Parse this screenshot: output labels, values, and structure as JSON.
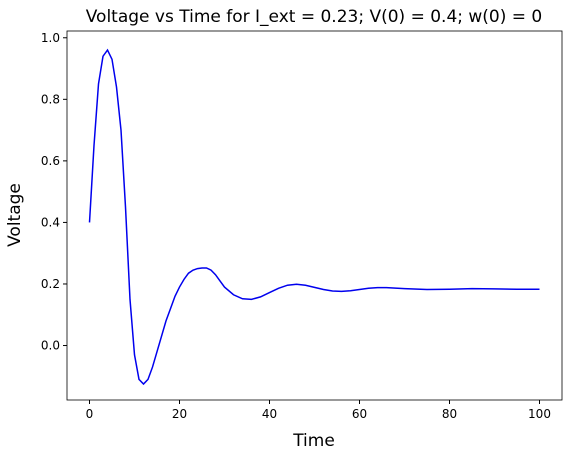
{
  "chart_data": {
    "type": "line",
    "title": "Voltage vs Time for I_ext = 0.23; V(0) = 0.4; w(0) = 0",
    "xlabel": "Time",
    "ylabel": "Voltage",
    "x": [
      0,
      1,
      2,
      3,
      4,
      5,
      6,
      7,
      8,
      9,
      10,
      11,
      12,
      13,
      14,
      15,
      16,
      17,
      18,
      19,
      20,
      21,
      22,
      23,
      24,
      25,
      26,
      27,
      28,
      29,
      30,
      32,
      34,
      36,
      38,
      40,
      42,
      44,
      46,
      48,
      50,
      52,
      54,
      56,
      58,
      60,
      62,
      64,
      66,
      70,
      75,
      80,
      85,
      90,
      95,
      100
    ],
    "series": [
      {
        "name": "Voltage",
        "color": "#0000ee",
        "values": [
          0.4,
          0.65,
          0.85,
          0.94,
          0.96,
          0.93,
          0.84,
          0.7,
          0.45,
          0.15,
          -0.03,
          -0.11,
          -0.125,
          -0.11,
          -0.07,
          -0.02,
          0.03,
          0.08,
          0.12,
          0.16,
          0.19,
          0.215,
          0.235,
          0.245,
          0.25,
          0.252,
          0.252,
          0.245,
          0.23,
          0.21,
          0.19,
          0.165,
          0.152,
          0.15,
          0.158,
          0.172,
          0.186,
          0.196,
          0.199,
          0.196,
          0.189,
          0.182,
          0.177,
          0.176,
          0.178,
          0.182,
          0.186,
          0.188,
          0.188,
          0.185,
          0.182,
          0.183,
          0.185,
          0.184,
          0.183,
          0.183
        ]
      }
    ],
    "xlim": [
      -5,
      105
    ],
    "xticks": [
      0,
      20,
      40,
      60,
      80,
      100
    ],
    "ylim": [
      -0.177,
      1.022
    ],
    "yticks": [
      {
        "value": 0,
        "label": "0.0"
      },
      0.2,
      0.4,
      0.6,
      0.8,
      {
        "value": 1,
        "label": "1.0"
      }
    ]
  }
}
